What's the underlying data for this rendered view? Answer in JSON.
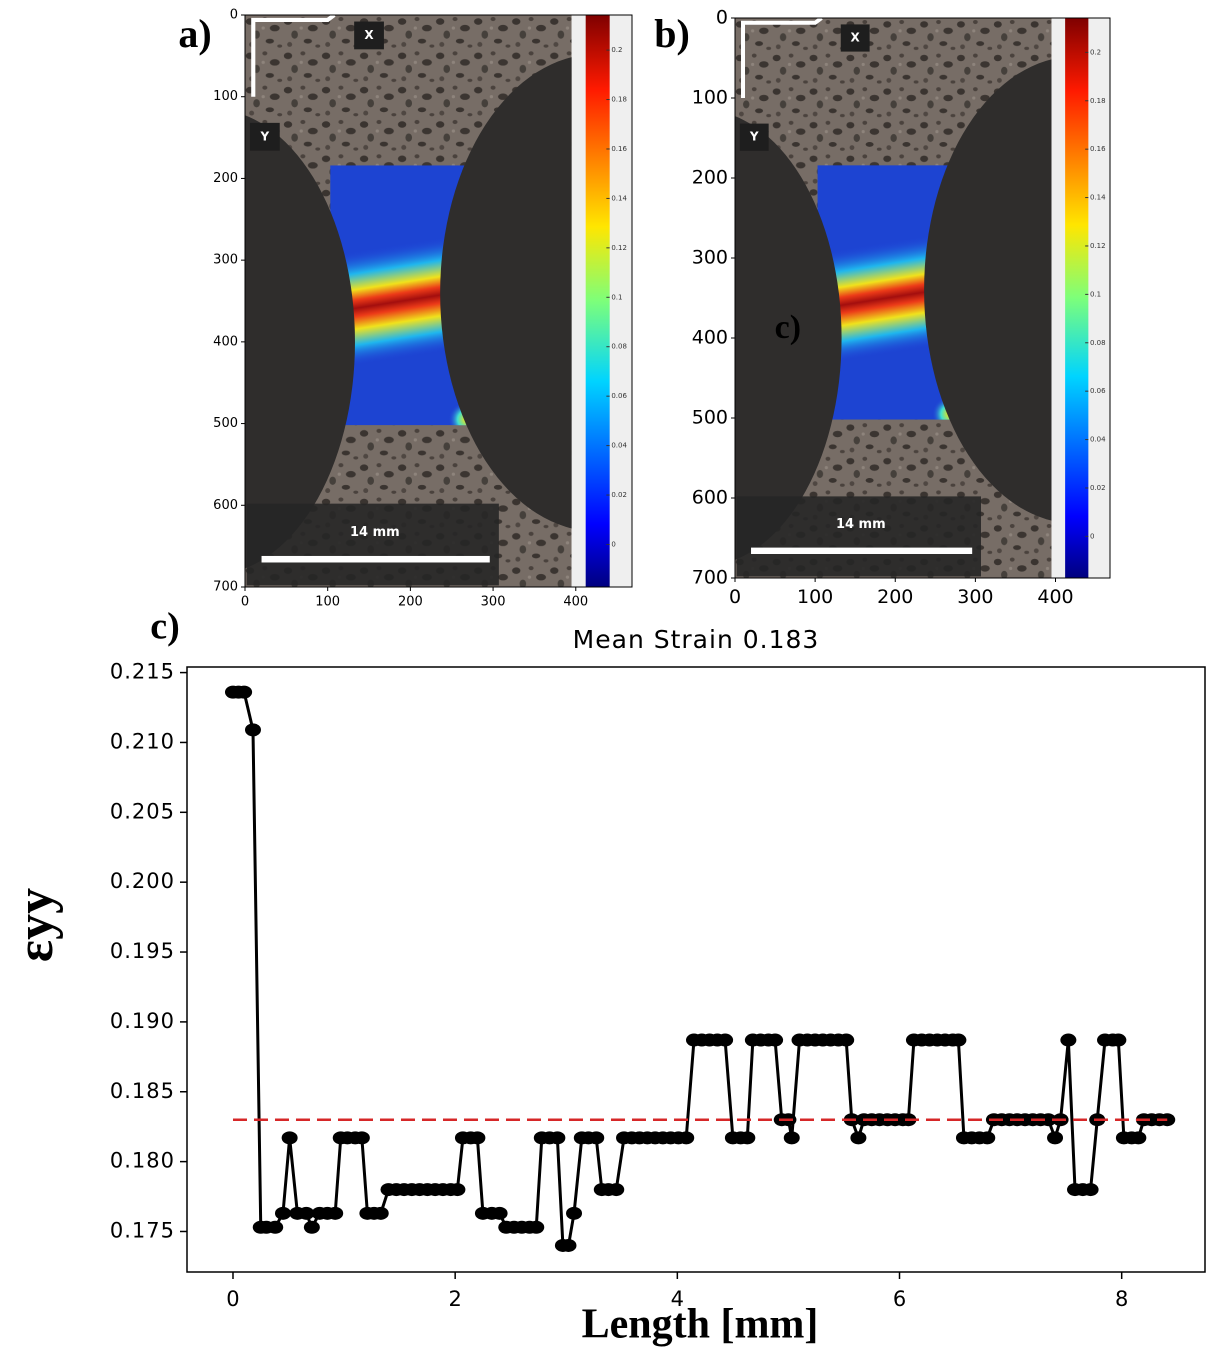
{
  "chart_data": [
    {
      "type": "image",
      "label": "a)",
      "xlim": [
        0,
        468
      ],
      "ylim": [
        0,
        700
      ],
      "y_inverted": true,
      "xticks": [
        0,
        100,
        200,
        300,
        400
      ],
      "yticks": [
        0,
        100,
        200,
        300,
        400,
        500,
        600,
        700
      ],
      "axis_labels": [
        "X",
        "Y"
      ],
      "scale_bar": "14 mm",
      "colorbar": {
        "clim": [
          -0.0172,
          0.2142
        ],
        "ticks": [
          0.2,
          0.18,
          0.16,
          0.14,
          0.12,
          0.1,
          0.08,
          0.06,
          0.04,
          0.02,
          0
        ]
      }
    },
    {
      "type": "image",
      "label": "b)",
      "xlim": [
        0,
        468
      ],
      "ylim": [
        0,
        700
      ],
      "y_inverted": true,
      "xticks": [
        0,
        100,
        200,
        300,
        400
      ],
      "yticks": [
        0,
        100,
        200,
        300,
        400,
        500,
        600,
        700
      ],
      "axis_labels": [
        "X",
        "Y"
      ],
      "scale_bar": "14 mm",
      "marker": "c)",
      "colorbar": {
        "clim": [
          -0.0172,
          0.2142
        ],
        "ticks": [
          0.2,
          0.18,
          0.16,
          0.14,
          0.12,
          0.1,
          0.08,
          0.06,
          0.04,
          0.02,
          0
        ]
      }
    },
    {
      "type": "line",
      "label": "c)",
      "title": "Mean Strain 0.183",
      "xlabel": "Length [mm]",
      "ylabel": "εyy",
      "color": "#000000",
      "xlim": [
        -0.414,
        8.75
      ],
      "ylim": [
        0.1721,
        0.2154
      ],
      "xticks": [
        0,
        2,
        4,
        6,
        8
      ],
      "yticks": [
        0.175,
        {
          "value": 0.18,
          "label": "0.180"
        },
        0.185,
        {
          "value": 0.19,
          "label": "0.190"
        },
        0.195,
        {
          "value": 0.2,
          "label": "0.200"
        },
        0.205,
        {
          "value": 0.21,
          "label": "0.210"
        },
        0.215
      ],
      "mean_line": {
        "value": 0.183,
        "color": "#d62728"
      },
      "x": [
        0,
        0.05,
        0.1,
        0.18,
        0.25,
        0.3,
        0.38,
        0.45,
        0.51,
        0.58,
        0.66,
        0.71,
        0.78,
        0.85,
        0.92,
        0.97,
        1.03,
        1.1,
        1.16,
        1.21,
        1.27,
        1.33,
        1.4,
        1.47,
        1.54,
        1.61,
        1.68,
        1.75,
        1.82,
        1.89,
        1.96,
        2.02,
        2.07,
        2.14,
        2.2,
        2.25,
        2.33,
        2.4,
        2.46,
        2.53,
        2.6,
        2.67,
        2.73,
        2.78,
        2.85,
        2.92,
        2.97,
        3.02,
        3.07,
        3.14,
        3.2,
        3.27,
        3.32,
        3.38,
        3.45,
        3.52,
        3.59,
        3.66,
        3.73,
        3.8,
        3.87,
        3.94,
        4.01,
        4.08,
        4.15,
        4.22,
        4.29,
        4.36,
        4.43,
        4.5,
        4.57,
        4.63,
        4.68,
        4.75,
        4.82,
        4.88,
        4.94,
        5.0,
        5.03,
        5.1,
        5.17,
        5.24,
        5.31,
        5.38,
        5.45,
        5.52,
        5.57,
        5.63,
        5.68,
        5.75,
        5.82,
        5.89,
        5.96,
        6.03,
        6.08,
        6.13,
        6.2,
        6.27,
        6.34,
        6.41,
        6.48,
        6.53,
        6.58,
        6.65,
        6.72,
        6.79,
        6.85,
        6.92,
        6.99,
        7.06,
        7.13,
        7.2,
        7.27,
        7.34,
        7.4,
        7.45,
        7.52,
        7.58,
        7.65,
        7.72,
        7.78,
        7.85,
        7.92,
        7.97,
        8.02,
        8.09,
        8.15,
        8.2,
        8.27,
        8.34,
        8.41
      ],
      "values": [
        0.2136,
        0.2136,
        0.2136,
        0.2109,
        0.1753,
        0.1753,
        0.1753,
        0.1763,
        0.1817,
        0.1763,
        0.1763,
        0.1753,
        0.1763,
        0.1763,
        0.1763,
        0.1817,
        0.1817,
        0.1817,
        0.1817,
        0.1763,
        0.1763,
        0.1763,
        0.178,
        0.178,
        0.178,
        0.178,
        0.178,
        0.178,
        0.178,
        0.178,
        0.178,
        0.178,
        0.1817,
        0.1817,
        0.1817,
        0.1763,
        0.1763,
        0.1763,
        0.1753,
        0.1753,
        0.1753,
        0.1753,
        0.1753,
        0.1817,
        0.1817,
        0.1817,
        0.174,
        0.174,
        0.1763,
        0.1817,
        0.1817,
        0.1817,
        0.178,
        0.178,
        0.178,
        0.1817,
        0.1817,
        0.1817,
        0.1817,
        0.1817,
        0.1817,
        0.1817,
        0.1817,
        0.1817,
        0.1887,
        0.1887,
        0.1887,
        0.1887,
        0.1887,
        0.1817,
        0.1817,
        0.1817,
        0.1887,
        0.1887,
        0.1887,
        0.1887,
        0.183,
        0.183,
        0.1817,
        0.1887,
        0.1887,
        0.1887,
        0.1887,
        0.1887,
        0.1887,
        0.1887,
        0.183,
        0.1817,
        0.183,
        0.183,
        0.183,
        0.183,
        0.183,
        0.183,
        0.183,
        0.1887,
        0.1887,
        0.1887,
        0.1887,
        0.1887,
        0.1887,
        0.1887,
        0.1817,
        0.1817,
        0.1817,
        0.1817,
        0.183,
        0.183,
        0.183,
        0.183,
        0.183,
        0.183,
        0.183,
        0.183,
        0.1817,
        0.183,
        0.1887,
        0.178,
        0.178,
        0.178,
        0.183,
        0.1887,
        0.1887,
        0.1887,
        0.1817,
        0.1817,
        0.1817,
        0.183,
        0.183,
        0.183,
        0.183
      ]
    }
  ]
}
